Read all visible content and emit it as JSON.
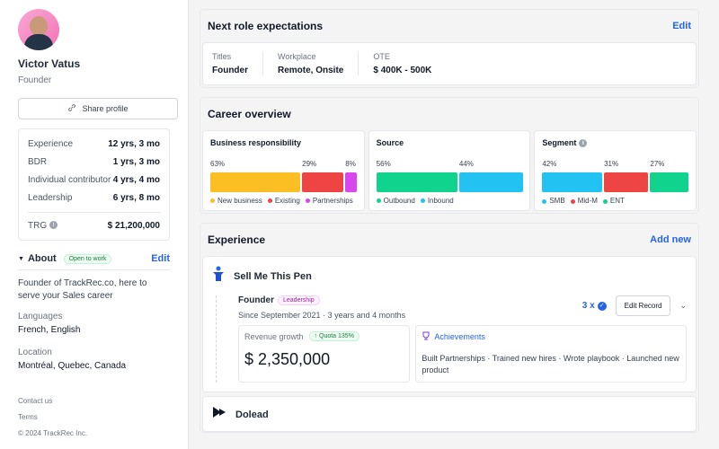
{
  "profile": {
    "name": "Victor Vatus",
    "role": "Founder",
    "share_label": "Share profile"
  },
  "stats": [
    {
      "label": "Experience",
      "value": "12 yrs, 3 mo"
    },
    {
      "label": "BDR",
      "value": "1 yrs, 3 mo"
    },
    {
      "label": "Individual contributor",
      "value": "4 yrs, 4 mo"
    },
    {
      "label": "Leadership",
      "value": "6 yrs, 8 mo"
    }
  ],
  "trg": {
    "label": "TRG",
    "value": "$ 21,200,000"
  },
  "about": {
    "title": "About",
    "badge": "Open to work",
    "edit": "Edit",
    "text": "Founder of TrackRec.co, here to serve your Sales career",
    "languages_label": "Languages",
    "languages": "French, English",
    "location_label": "Location",
    "location": "Montréal, Quebec, Canada"
  },
  "footer": {
    "contact": "Contact us",
    "terms": "Terms",
    "copyright": "© 2024 TrackRec Inc."
  },
  "next_role": {
    "title": "Next role expectations",
    "edit": "Edit",
    "titles_label": "Titles",
    "titles": "Founder",
    "workplace_label": "Workplace",
    "workplace": "Remote,  Onsite",
    "ote_label": "OTE",
    "ote": "$ 400K - 500K"
  },
  "career": {
    "title": "Career overview",
    "business": {
      "title": "Business responsibility",
      "segments": [
        {
          "pct": "63%",
          "value": 63,
          "color": "#fbbf24",
          "label": "New business"
        },
        {
          "pct": "29%",
          "value": 29,
          "color": "#ef4444",
          "label": "Existing"
        },
        {
          "pct": "8%",
          "value": 8,
          "color": "#d946ef",
          "label": "Partnerships"
        }
      ]
    },
    "source": {
      "title": "Source",
      "segments": [
        {
          "pct": "56%",
          "value": 56,
          "color": "#10d48e",
          "label": "Outbound"
        },
        {
          "pct": "44%",
          "value": 44,
          "color": "#22c3f3",
          "label": "Inbound"
        }
      ]
    },
    "segment": {
      "title": "Segment",
      "segments": [
        {
          "pct": "42%",
          "value": 42,
          "color": "#22c3f3",
          "label": "SMB"
        },
        {
          "pct": "31%",
          "value": 31,
          "color": "#ef4444",
          "label": "Mid-M"
        },
        {
          "pct": "27%",
          "value": 27,
          "color": "#10d48e",
          "label": "ENT"
        }
      ]
    }
  },
  "experience": {
    "title": "Experience",
    "add": "Add new",
    "company1": {
      "name": "Sell Me This Pen",
      "position": "Founder",
      "badge": "Leadership",
      "since": "Since September 2021",
      "duration": "3 years and 4 months",
      "count": "3 x",
      "edit_record": "Edit Record",
      "revenue_label": "Revenue growth",
      "quota": "Quota 135%",
      "revenue": "$ 2,350,000",
      "achievements_label": "Achievements",
      "achievements": "Built Partnerships · Trained new hires · Wrote playbook · Launched new product"
    },
    "company2": {
      "name": "Dolead"
    }
  }
}
